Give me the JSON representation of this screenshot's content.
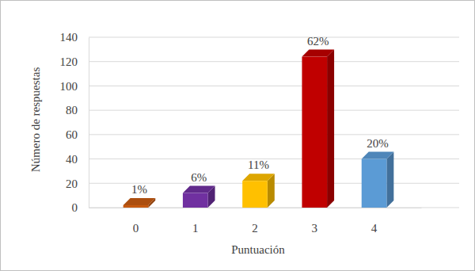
{
  "chart_data": {
    "type": "bar",
    "x_label": "Puntuación",
    "y_label": "Número de respuestas",
    "categories": [
      "0",
      "1",
      "2",
      "3",
      "4"
    ],
    "values": [
      2,
      12,
      22,
      124,
      40
    ],
    "value_labels": [
      "1%",
      "6%",
      "11%",
      "62%",
      "20%"
    ],
    "colors": [
      "#c55a11",
      "#7030a0",
      "#ffc000",
      "#c00000",
      "#5b9bd5"
    ],
    "ylim": [
      0,
      140
    ],
    "yticks": [
      0,
      20,
      40,
      60,
      80,
      100,
      120,
      140
    ],
    "grid": true,
    "data_labels": true
  }
}
